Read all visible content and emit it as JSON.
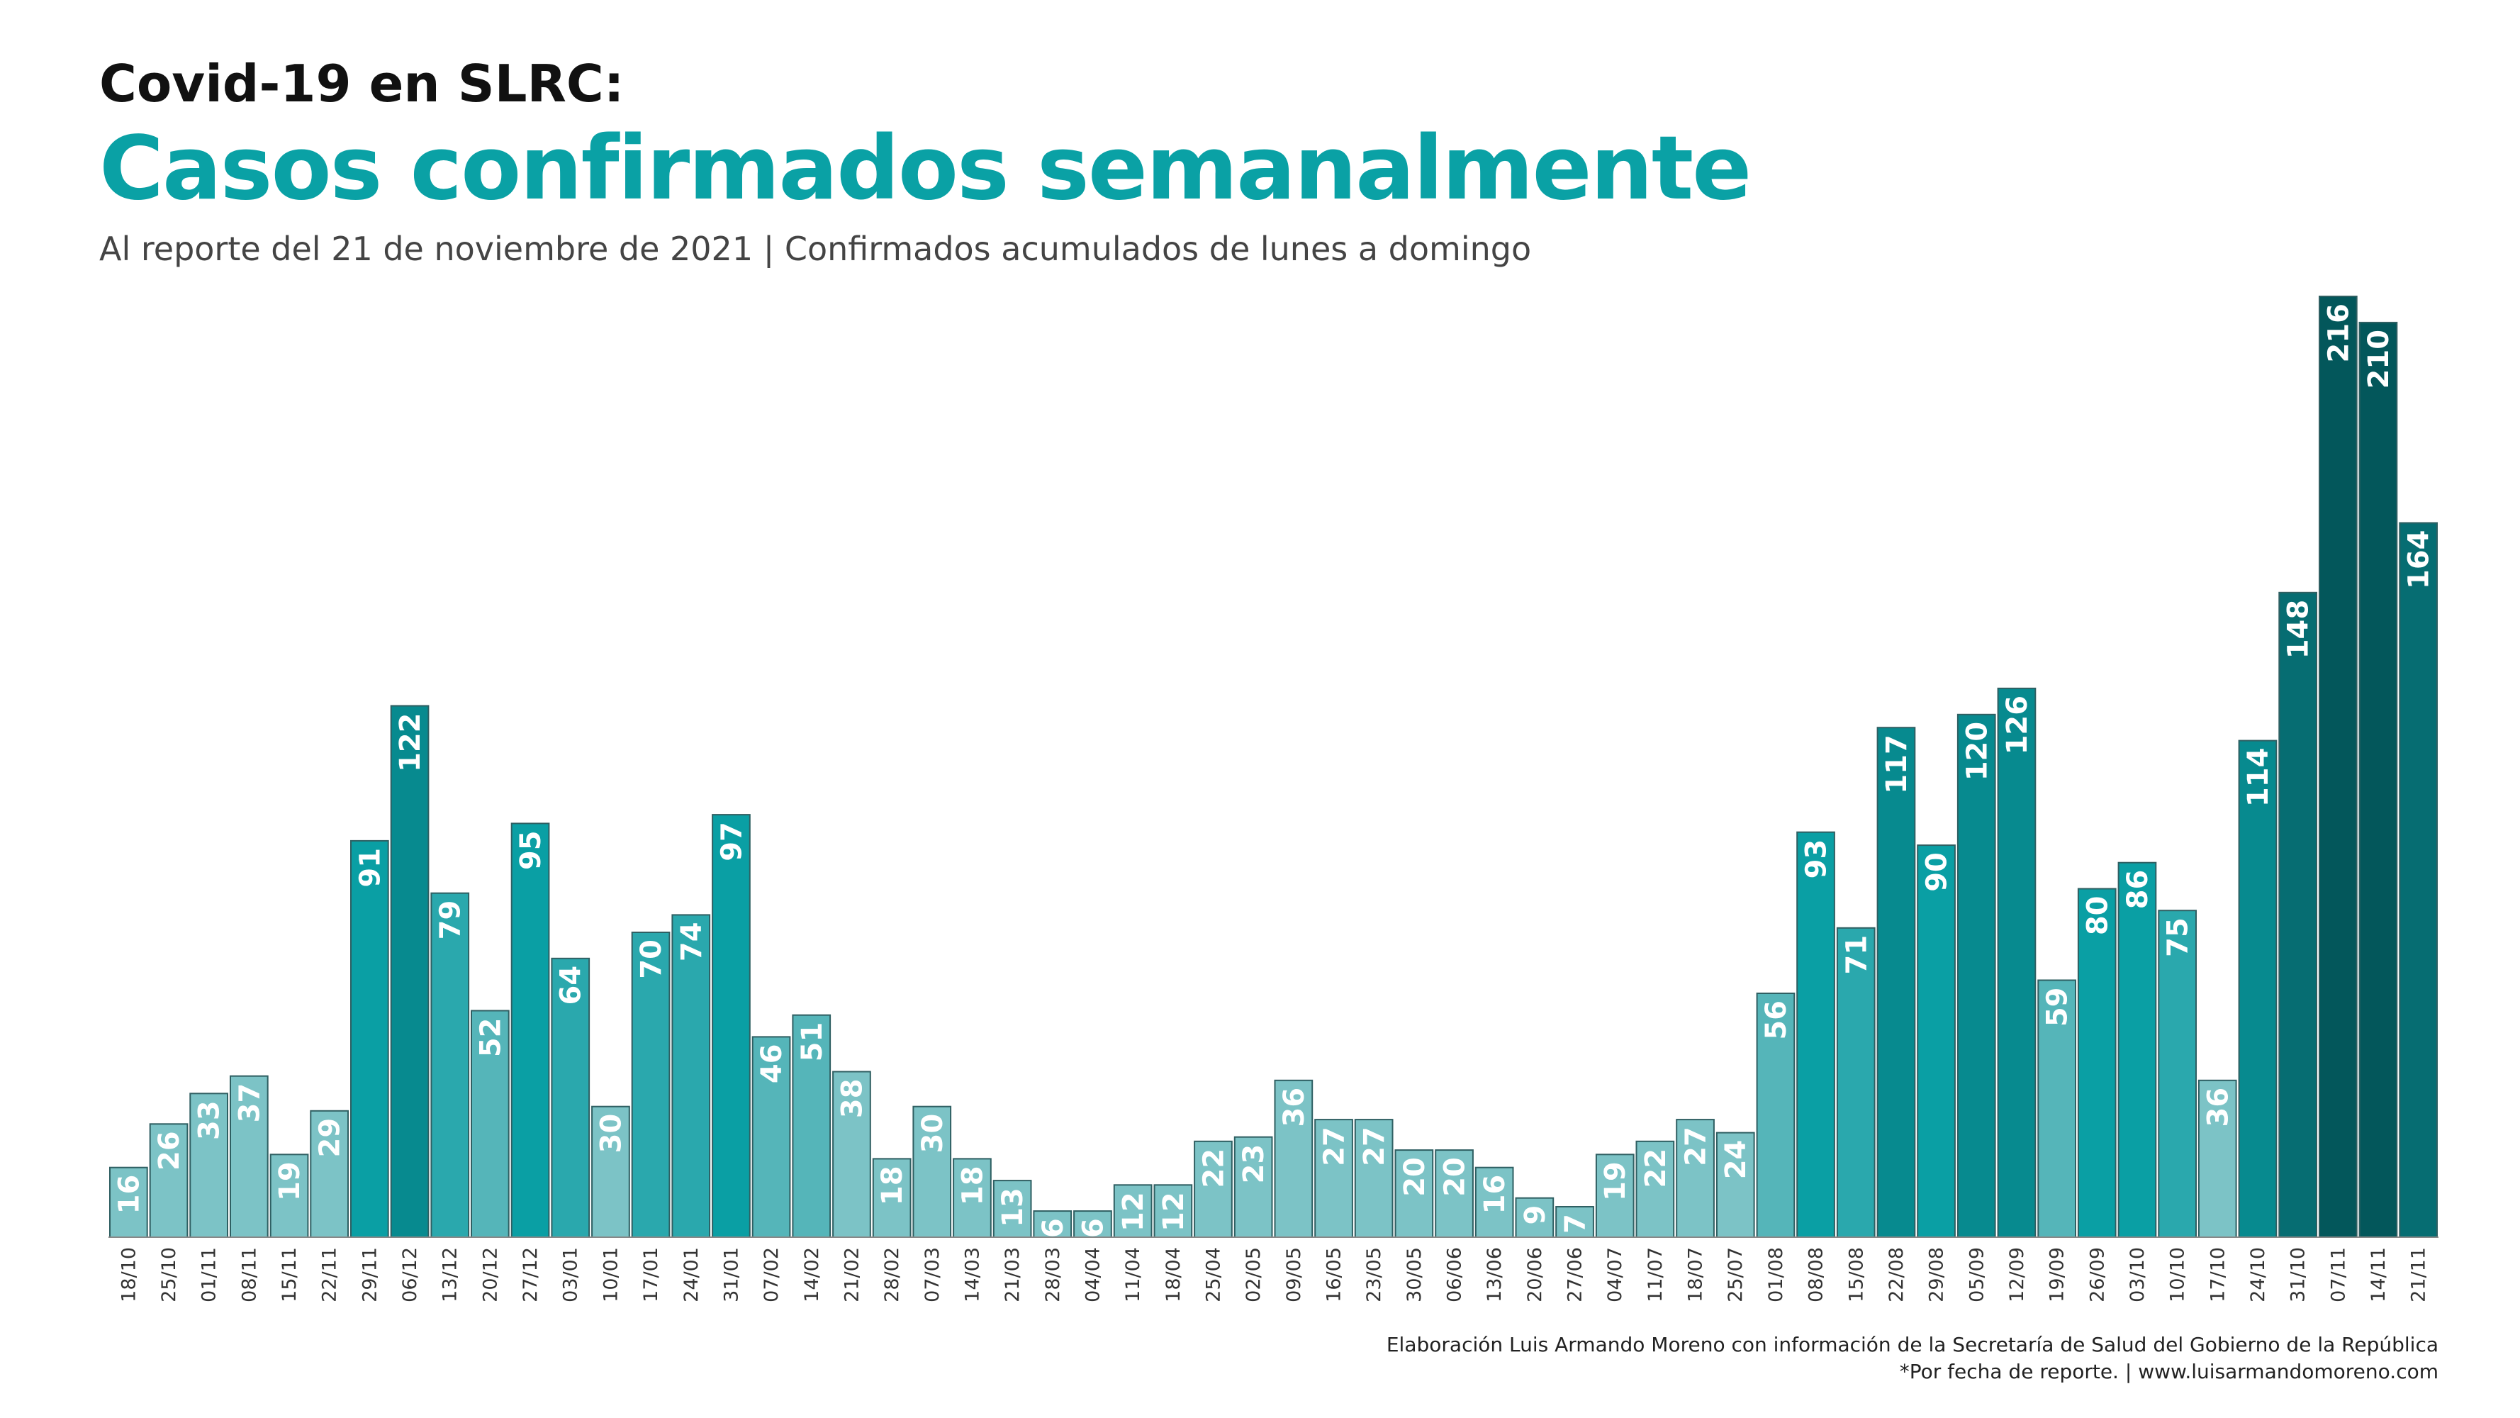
{
  "header": {
    "title_top": "Covid-19 en SLRC:",
    "title_main": "Casos confirmados semanalmente",
    "subtitle": "Al reporte del 21 de noviembre de 2021 | Confirmados acumulados de lunes a domingo"
  },
  "credits": {
    "line1": "Elaboración Luis Armando Moreno con información de la Secretaría de Salud del Gobierno de la República",
    "line2": "*Por fecha de reporte. | www.luisarmandomoreno.com"
  },
  "chart_data": {
    "type": "bar",
    "title": "Casos confirmados semanalmente",
    "xlabel": "",
    "ylabel": "",
    "ylim": [
      0,
      216
    ],
    "grid": false,
    "legend": "none",
    "categories": [
      "18/10",
      "25/10",
      "01/11",
      "08/11",
      "15/11",
      "22/11",
      "29/11",
      "06/12",
      "13/12",
      "20/12",
      "27/12",
      "03/01",
      "10/01",
      "17/01",
      "24/01",
      "31/01",
      "07/02",
      "14/02",
      "21/02",
      "28/02",
      "07/03",
      "14/03",
      "21/03",
      "28/03",
      "04/04",
      "11/04",
      "18/04",
      "25/04",
      "02/05",
      "09/05",
      "16/05",
      "23/05",
      "30/05",
      "06/06",
      "13/06",
      "20/06",
      "27/06",
      "04/07",
      "11/07",
      "18/07",
      "25/07",
      "01/08",
      "08/08",
      "15/08",
      "22/08",
      "29/08",
      "05/09",
      "12/09",
      "19/09",
      "26/09",
      "03/10",
      "10/10",
      "17/10",
      "24/10",
      "31/10",
      "07/11",
      "14/11",
      "21/11"
    ],
    "values": [
      16,
      26,
      33,
      37,
      19,
      29,
      91,
      122,
      79,
      52,
      95,
      64,
      30,
      70,
      74,
      97,
      46,
      51,
      38,
      18,
      30,
      18,
      13,
      6,
      6,
      12,
      12,
      22,
      23,
      36,
      27,
      27,
      20,
      20,
      16,
      9,
      7,
      19,
      22,
      27,
      24,
      56,
      93,
      71,
      117,
      90,
      120,
      126,
      59,
      80,
      86,
      75,
      36,
      114,
      148,
      216,
      210,
      164
    ],
    "colors": {
      "light": "#7cc3c6",
      "low": "#55b5b9",
      "mid": "#2aa8ad",
      "bright": "#0a9fa4",
      "strong": "#078a8f",
      "dark": "#066d72",
      "darkest": "#03575b",
      "label": "#ffffff",
      "tick": "#333333",
      "axis": "#888888"
    }
  }
}
